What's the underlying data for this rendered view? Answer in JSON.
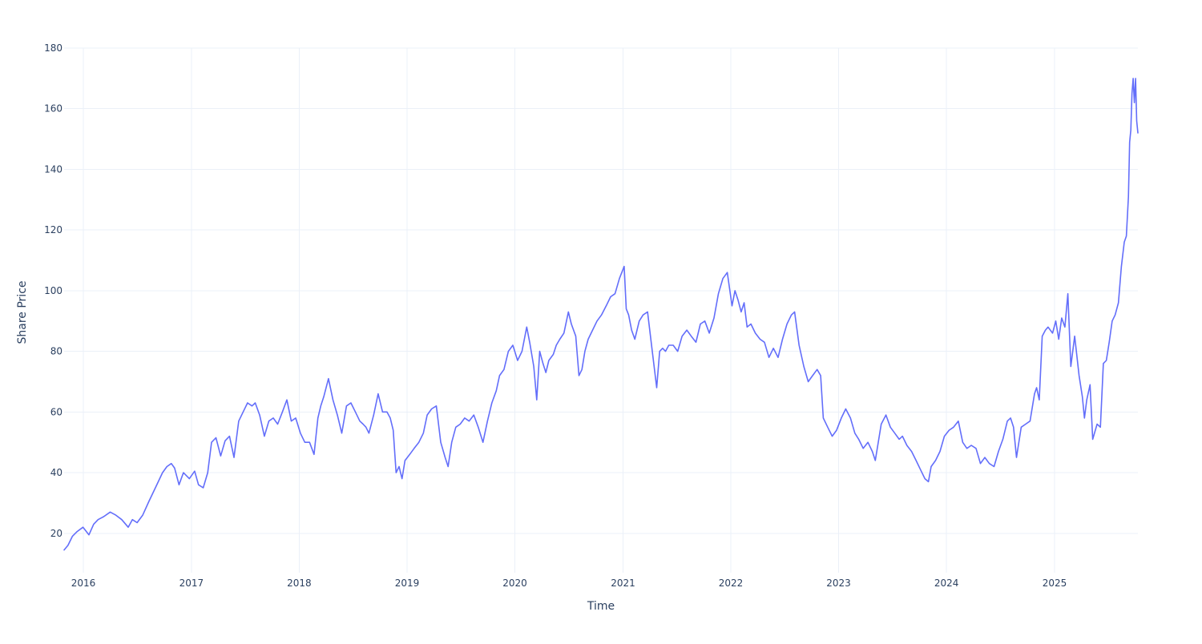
{
  "chart_data": {
    "type": "line",
    "xlabel": "Time",
    "ylabel": "Share Price",
    "xlim": [
      "2015-10-28",
      "2025-10-10"
    ],
    "ylim": [
      7,
      180
    ],
    "x_tick_labels": [
      "2016",
      "2017",
      "2018",
      "2019",
      "2020",
      "2021",
      "2022",
      "2023",
      "2024",
      "2025"
    ],
    "y_ticks": [
      20,
      40,
      60,
      80,
      100,
      120,
      140,
      160,
      180
    ],
    "grid": true,
    "legend": "none",
    "colors": {
      "line": "#636efa",
      "grid": "#ebf0f8",
      "text": "#2a3f5f",
      "background": "#ffffff"
    },
    "series": [
      {
        "x": [
          "2015-10-28",
          "2015-11-10",
          "2015-11-25",
          "2015-12-10",
          "2015-12-31",
          "2016-01-20",
          "2016-02-05",
          "2016-02-20",
          "2016-03-10",
          "2016-04-01",
          "2016-04-20",
          "2016-05-10",
          "2016-06-01",
          "2016-06-15",
          "2016-07-01",
          "2016-07-20",
          "2016-08-10",
          "2016-09-01",
          "2016-09-25",
          "2016-10-10",
          "2016-10-25",
          "2016-11-05",
          "2016-11-20",
          "2016-12-05",
          "2016-12-25",
          "2017-01-12",
          "2017-01-25",
          "2017-02-10",
          "2017-02-25",
          "2017-03-10",
          "2017-03-25",
          "2017-04-10",
          "2017-04-25",
          "2017-05-10",
          "2017-05-25",
          "2017-06-10",
          "2017-06-25",
          "2017-07-10",
          "2017-07-25",
          "2017-08-05",
          "2017-08-20",
          "2017-09-05",
          "2017-09-20",
          "2017-10-05",
          "2017-10-20",
          "2017-11-05",
          "2017-11-20",
          "2017-12-05",
          "2017-12-20",
          "2018-01-05",
          "2018-01-20",
          "2018-02-05",
          "2018-02-20",
          "2018-03-05",
          "2018-03-15",
          "2018-03-25",
          "2018-04-10",
          "2018-04-25",
          "2018-05-10",
          "2018-05-25",
          "2018-06-10",
          "2018-06-25",
          "2018-07-10",
          "2018-07-25",
          "2018-08-05",
          "2018-08-15",
          "2018-08-25",
          "2018-09-10",
          "2018-09-25",
          "2018-10-10",
          "2018-10-25",
          "2018-11-05",
          "2018-11-15",
          "2018-11-25",
          "2018-12-05",
          "2018-12-15",
          "2018-12-25",
          "2019-01-10",
          "2019-01-25",
          "2019-02-10",
          "2019-02-25",
          "2019-03-10",
          "2019-03-25",
          "2019-04-10",
          "2019-04-25",
          "2019-05-10",
          "2019-05-20",
          "2019-06-01",
          "2019-06-15",
          "2019-06-30",
          "2019-07-15",
          "2019-07-30",
          "2019-08-15",
          "2019-08-30",
          "2019-09-15",
          "2019-09-30",
          "2019-10-15",
          "2019-10-30",
          "2019-11-10",
          "2019-11-25",
          "2019-12-10",
          "2019-12-25",
          "2020-01-10",
          "2020-01-25",
          "2020-02-10",
          "2020-02-20",
          "2020-03-05",
          "2020-03-15",
          "2020-03-25",
          "2020-04-05",
          "2020-04-15",
          "2020-04-25",
          "2020-05-10",
          "2020-05-20",
          "2020-06-01",
          "2020-06-15",
          "2020-06-30",
          "2020-07-10",
          "2020-07-25",
          "2020-08-05",
          "2020-08-15",
          "2020-08-25",
          "2020-09-05",
          "2020-09-20",
          "2020-10-05",
          "2020-10-20",
          "2020-11-05",
          "2020-11-20",
          "2020-12-05",
          "2020-12-20",
          "2021-01-05",
          "2021-01-12",
          "2021-01-20",
          "2021-01-30",
          "2021-02-10",
          "2021-02-25",
          "2021-03-10",
          "2021-03-25",
          "2021-04-10",
          "2021-04-25",
          "2021-05-05",
          "2021-05-15",
          "2021-05-25",
          "2021-06-05",
          "2021-06-20",
          "2021-07-05",
          "2021-07-20",
          "2021-08-05",
          "2021-08-20",
          "2021-09-05",
          "2021-09-20",
          "2021-10-05",
          "2021-10-20",
          "2021-11-05",
          "2021-11-20",
          "2021-12-05",
          "2021-12-20",
          "2022-01-05",
          "2022-01-15",
          "2022-01-25",
          "2022-02-05",
          "2022-02-15",
          "2022-02-25",
          "2022-03-10",
          "2022-03-25",
          "2022-04-10",
          "2022-04-25",
          "2022-05-10",
          "2022-05-25",
          "2022-06-10",
          "2022-06-25",
          "2022-07-10",
          "2022-07-25",
          "2022-08-05",
          "2022-08-20",
          "2022-09-05",
          "2022-09-20",
          "2022-10-05",
          "2022-10-20",
          "2022-11-01",
          "2022-11-10",
          "2022-11-25",
          "2022-12-10",
          "2022-12-25",
          "2023-01-10",
          "2023-01-25",
          "2023-02-10",
          "2023-02-25",
          "2023-03-10",
          "2023-03-25",
          "2023-04-10",
          "2023-04-25",
          "2023-05-05",
          "2023-05-15",
          "2023-05-25",
          "2023-06-10",
          "2023-06-25",
          "2023-07-10",
          "2023-07-25",
          "2023-08-05",
          "2023-08-20",
          "2023-09-05",
          "2023-09-20",
          "2023-10-05",
          "2023-10-20",
          "2023-11-01",
          "2023-11-10",
          "2023-11-25",
          "2023-12-10",
          "2023-12-25",
          "2024-01-10",
          "2024-01-25",
          "2024-02-10",
          "2024-02-25",
          "2024-03-10",
          "2024-03-25",
          "2024-04-10",
          "2024-04-25",
          "2024-05-10",
          "2024-05-25",
          "2024-06-10",
          "2024-06-25",
          "2024-07-10",
          "2024-07-25",
          "2024-08-05",
          "2024-08-15",
          "2024-08-25",
          "2024-09-10",
          "2024-09-25",
          "2024-10-10",
          "2024-10-25",
          "2024-11-01",
          "2024-11-10",
          "2024-11-20",
          "2024-12-01",
          "2024-12-10",
          "2024-12-25",
          "2025-01-05",
          "2025-01-15",
          "2025-01-25",
          "2025-02-05",
          "2025-02-15",
          "2025-02-25",
          "2025-03-10",
          "2025-03-25",
          "2025-04-05",
          "2025-04-12",
          "2025-04-20",
          "2025-05-01",
          "2025-05-10",
          "2025-05-25",
          "2025-06-05",
          "2025-06-15",
          "2025-06-25",
          "2025-07-05",
          "2025-07-15",
          "2025-07-25",
          "2025-08-05",
          "2025-08-15",
          "2025-08-25",
          "2025-09-01",
          "2025-09-08",
          "2025-09-12",
          "2025-09-16",
          "2025-09-20",
          "2025-09-24",
          "2025-09-28",
          "2025-10-02",
          "2025-10-06",
          "2025-10-10"
        ],
        "y": [
          14.5,
          16,
          19,
          20.5,
          22,
          19.5,
          23,
          24.5,
          25.5,
          27,
          26,
          24.5,
          22,
          24.5,
          23.5,
          26,
          30.5,
          35,
          40,
          42,
          43,
          41.5,
          36,
          40,
          38,
          40.5,
          36,
          35,
          40,
          50,
          51.5,
          45.5,
          50.5,
          52,
          45,
          57,
          60,
          63,
          62,
          63,
          59,
          52,
          57,
          58,
          56,
          60,
          64,
          57,
          58,
          53,
          50,
          50,
          46,
          58,
          62,
          65,
          71,
          64,
          59,
          53,
          62,
          63,
          60,
          57,
          56,
          55,
          53,
          59,
          66,
          60,
          60,
          58,
          54,
          40,
          42,
          38,
          44,
          46,
          48,
          50,
          53,
          59,
          61,
          62,
          50,
          45,
          42,
          50,
          55,
          56,
          58,
          57,
          59,
          55,
          50,
          57,
          63,
          67,
          72,
          74,
          80,
          82,
          77,
          80,
          88,
          83,
          75,
          64,
          80,
          76,
          73,
          77,
          79,
          82,
          84,
          86,
          93,
          89,
          85,
          72,
          74,
          80,
          84,
          87,
          90,
          92,
          95,
          98,
          99,
          104,
          108,
          94,
          92,
          87,
          84,
          90,
          92,
          93,
          80,
          68,
          80,
          81,
          80,
          82,
          82,
          80,
          85,
          87,
          85,
          83,
          89,
          90,
          86,
          91,
          99,
          104,
          106,
          95,
          100,
          97,
          93,
          96,
          88,
          89,
          86,
          84,
          83,
          78,
          81,
          78,
          84,
          89,
          92,
          93,
          82,
          75,
          70,
          72,
          74,
          72,
          58,
          55,
          52,
          54,
          58,
          61,
          58,
          53,
          51,
          48,
          50,
          47,
          44,
          50,
          56,
          59,
          55,
          53,
          51,
          52,
          49,
          47,
          44,
          41,
          38,
          37,
          42,
          44,
          47,
          52,
          54,
          55,
          57,
          50,
          48,
          49,
          48,
          43,
          45,
          43,
          42,
          47,
          51,
          57,
          58,
          55,
          45,
          55,
          56,
          57,
          66,
          68,
          64,
          85,
          87,
          88,
          86,
          90,
          84,
          91,
          88,
          99,
          75,
          85,
          72,
          65,
          58,
          64,
          69,
          51,
          56,
          55,
          76,
          77,
          83,
          90,
          92,
          96,
          108,
          116,
          118,
          131,
          149,
          153,
          165,
          170,
          162,
          170,
          156,
          152
        ]
      }
    ]
  }
}
